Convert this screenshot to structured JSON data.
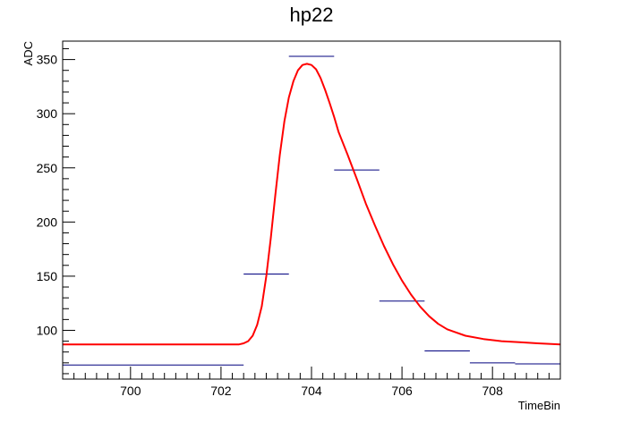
{
  "chart_data": {
    "type": "line",
    "title": "hp22",
    "xlabel": "TimeBin",
    "ylabel": "ADC",
    "xlim": [
      698.5,
      709.5
    ],
    "ylim": [
      55,
      367
    ],
    "x_major_ticks": [
      700,
      702,
      704,
      706,
      708
    ],
    "y_major_ticks": [
      100,
      150,
      200,
      250,
      300,
      350
    ],
    "x_tick_labels": [
      "700",
      "702",
      "704",
      "706",
      "708"
    ],
    "y_tick_labels": [
      "100",
      "150",
      "200",
      "250",
      "300",
      "350"
    ],
    "grid": false,
    "series": [
      {
        "kind": "histogram-bins",
        "color": "#00007f",
        "bins": [
          {
            "x0": 698.5,
            "x1": 702.5,
            "y": 68
          },
          {
            "x0": 702.5,
            "x1": 703.5,
            "y": 152
          },
          {
            "x0": 703.5,
            "x1": 704.5,
            "y": 353
          },
          {
            "x0": 704.5,
            "x1": 705.5,
            "y": 248
          },
          {
            "x0": 705.5,
            "x1": 706.5,
            "y": 127
          },
          {
            "x0": 706.5,
            "x1": 707.5,
            "y": 81
          },
          {
            "x0": 707.5,
            "x1": 708.5,
            "y": 70
          },
          {
            "x0": 708.5,
            "x1": 709.5,
            "y": 69
          }
        ]
      },
      {
        "kind": "fit-curve",
        "color": "#ff0000",
        "x": [
          698.5,
          700,
          701,
          702,
          702.4,
          702.5,
          702.6,
          702.7,
          702.8,
          702.9,
          703.0,
          703.1,
          703.2,
          703.3,
          703.4,
          703.5,
          703.6,
          703.7,
          703.8,
          703.9,
          704.0,
          704.1,
          704.2,
          704.3,
          704.4,
          704.5,
          704.6,
          704.8,
          705.0,
          705.2,
          705.4,
          705.6,
          705.8,
          706.0,
          706.2,
          706.4,
          706.6,
          706.8,
          707.0,
          707.4,
          707.8,
          708.2,
          708.6,
          709.0,
          709.5
        ],
        "y": [
          87,
          87,
          87,
          87,
          87,
          88,
          90,
          95,
          105,
          122,
          150,
          185,
          225,
          262,
          293,
          315,
          330,
          340,
          345,
          346,
          345,
          341,
          333,
          322,
          310,
          297,
          283,
          262,
          240,
          217,
          197,
          178,
          161,
          146,
          133,
          122,
          113,
          106,
          101,
          95,
          92,
          90,
          89,
          88,
          87
        ]
      }
    ]
  }
}
